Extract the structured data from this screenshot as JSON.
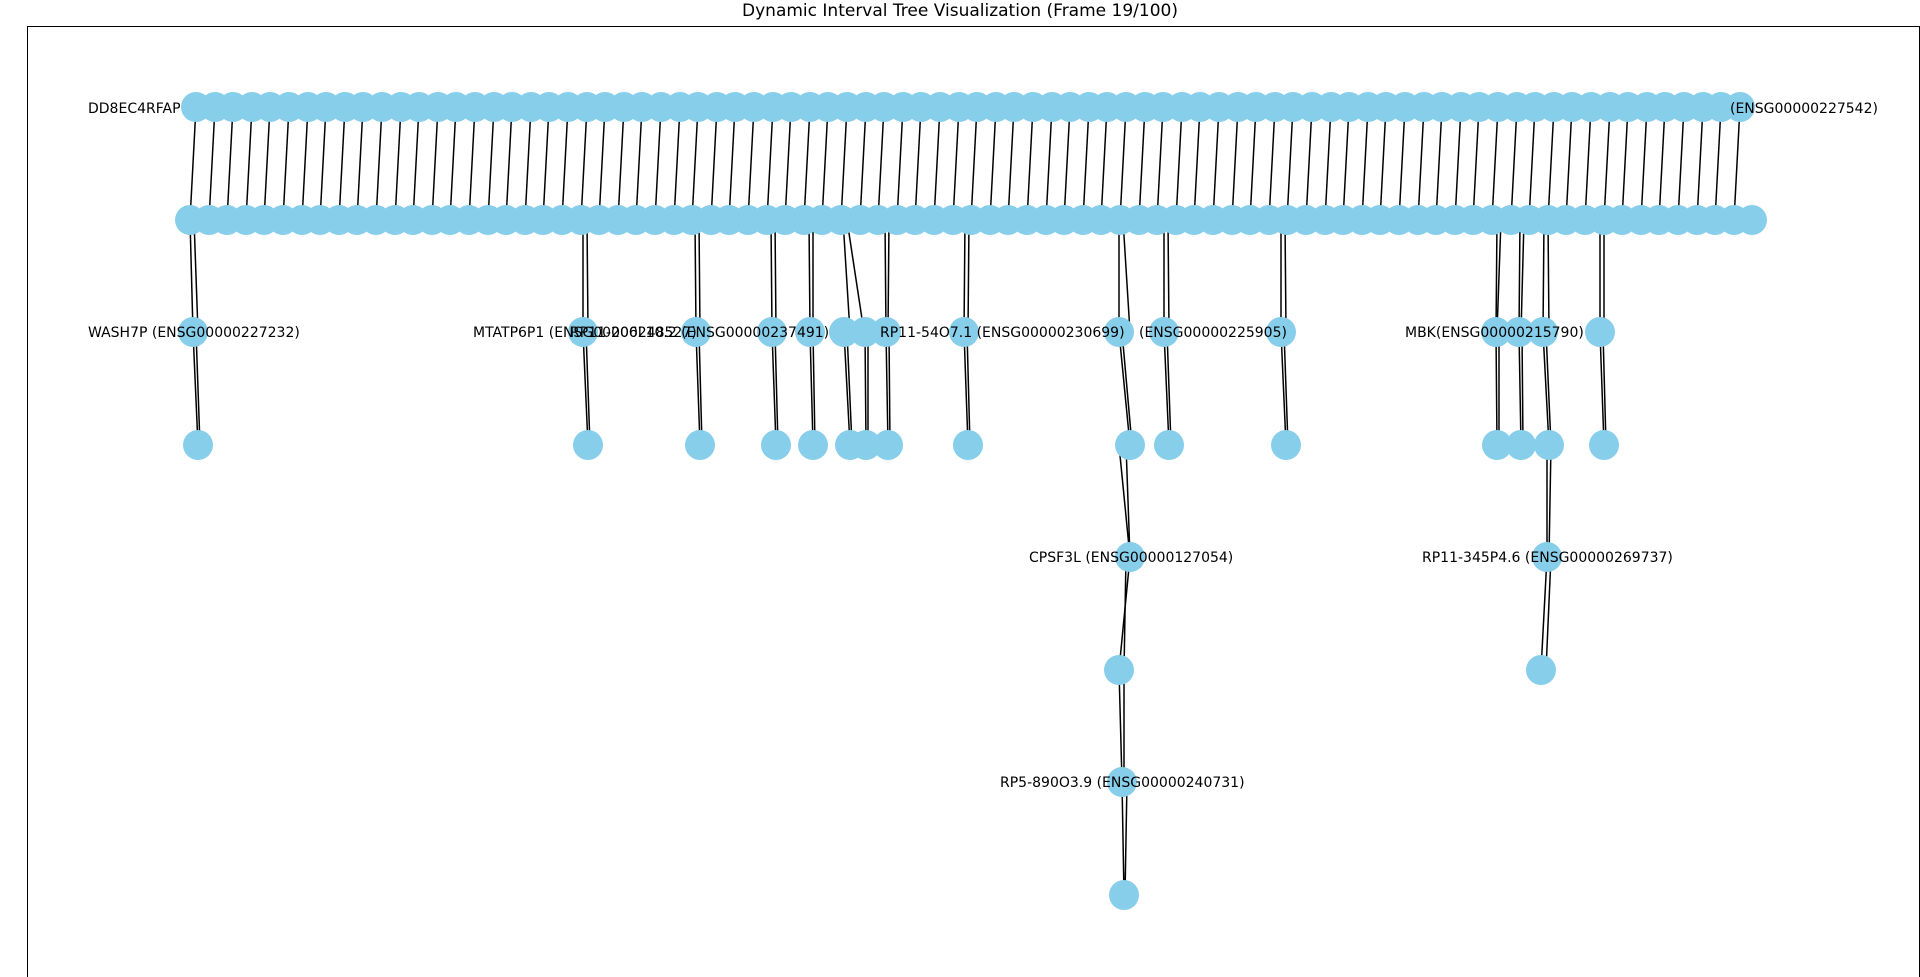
{
  "title": "Dynamic Interval Tree Visualization (Frame 19/100)",
  "colors": {
    "node": "#87ceeb",
    "edge": "#000000"
  },
  "labels": {
    "top_left": "DD8EC4RFAP",
    "top_right": "(ENSG00000227542)",
    "wash7p": "WASH7P (ENSG00000227232)",
    "mtatp6p1": "MTATP6P1 (ENSG00000248527)",
    "rp11_206": "RP11-206L10.2 (ENSG00000237491)",
    "rp11_mid": "RP11-54O7.1 (ENSG00000230699)",
    "ensg_225905": "(ENSG00000225905)",
    "mbk": "MBK(ENSG00000215790)",
    "cpsf3l": "CPSF3L (ENSG00000127054)",
    "rp11_345p4": "RP11-345P4.6 (ENSG00000269737)",
    "rp5_890o3": "RP5-890O3.9 (ENSG00000240731)"
  }
}
